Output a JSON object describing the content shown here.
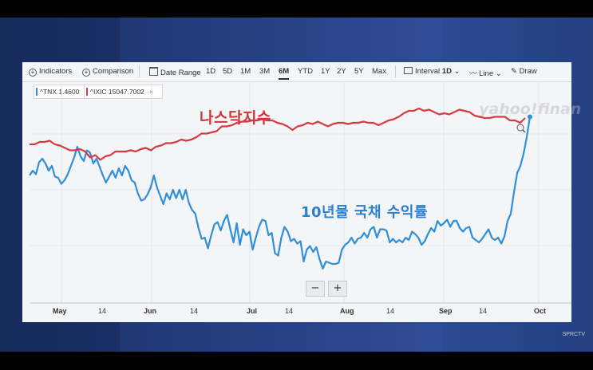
{
  "toolbar": {
    "indicators": "Indicators",
    "comparison": "Comparison",
    "date_range": "Date Range",
    "ranges": [
      "1D",
      "5D",
      "1M",
      "3M",
      "6M",
      "YTD",
      "1Y",
      "2Y",
      "5Y",
      "Max"
    ],
    "selected_range": "6M",
    "interval_label": "Interval",
    "interval_value": "1D",
    "line_label": "Line",
    "draw": "Draw"
  },
  "legend": {
    "tnx": "^TNX 1.4600",
    "ixic": "^IXIC 15047.7002",
    "close": "×"
  },
  "captions": {
    "nasdaq": "나스닥지수",
    "bond": "10년물 국채 수익률"
  },
  "watermark": "yahoo!finan",
  "zoom": {
    "minus": "−",
    "plus": "+"
  },
  "x_axis": [
    "May",
    "14",
    "Jun",
    "14",
    "Jul",
    "14",
    "Aug",
    "14",
    "Sep",
    "14",
    "Oct"
  ],
  "corner_logo": "SPRCTV",
  "colors": {
    "tnx": "#2f8fd8",
    "ixic": "#d63a42"
  },
  "chart_data": {
    "type": "line",
    "x_tick_labels": [
      "May",
      "14",
      "Jun",
      "14",
      "Jul",
      "14",
      "Aug",
      "14",
      "Sep",
      "14",
      "Oct"
    ],
    "series": [
      {
        "name": "^TNX",
        "values": [
          0.62,
          0.66,
          0.63,
          0.73,
          0.76,
          0.72,
          0.66,
          0.7,
          0.61,
          0.6,
          0.55,
          0.58,
          0.63,
          0.7,
          0.77,
          0.86,
          0.78,
          0.74,
          0.83,
          0.81,
          0.72,
          0.76,
          0.69,
          0.62,
          0.56,
          0.61,
          0.66,
          0.6,
          0.68,
          0.62,
          0.7,
          0.66,
          0.58,
          0.56,
          0.47,
          0.41,
          0.42,
          0.46,
          0.52,
          0.62,
          0.52,
          0.45,
          0.38,
          0.47,
          0.42,
          0.5,
          0.43,
          0.5,
          0.42,
          0.5,
          0.39,
          0.33,
          0.3,
          0.18,
          0.09,
          0.1,
          0.01,
          0.12,
          0.21,
          0.23,
          0.16,
          0.24,
          0.29,
          0.17,
          0.06,
          0.22,
          0.04,
          0.17,
          0.12,
          0.15,
          0.0,
          0.1,
          0.19,
          0.25,
          0.24,
          0.12,
          0.14,
          -0.03,
          -0.05,
          0.1,
          0.19,
          0.15,
          0.07,
          0.09,
          0.05,
          0.07,
          -0.1,
          0.0,
          0.03,
          -0.02,
          0.02,
          -0.08,
          -0.16,
          -0.1,
          -0.11,
          -0.12,
          -0.12,
          -0.11,
          0.0,
          0.04,
          0.06,
          0.1,
          0.05,
          0.09,
          0.1,
          0.14,
          0.1,
          0.17,
          0.19,
          0.1,
          0.17,
          0.17,
          0.16,
          0.06,
          0.09,
          0.06,
          0.08,
          0.06,
          0.1,
          0.08,
          0.15,
          0.13,
          0.1,
          0.04,
          0.07,
          0.13,
          0.18,
          0.15,
          0.24,
          0.2,
          0.22,
          0.25,
          0.19,
          0.24,
          0.24,
          0.18,
          0.15,
          0.18,
          0.19,
          0.1,
          0.08,
          0.06,
          0.09,
          0.13,
          0.17,
          0.1,
          0.08,
          0.1,
          0.05,
          0.11,
          0.24,
          0.3,
          0.48,
          0.64,
          0.7,
          0.8,
          0.94,
          1.11
        ]
      },
      {
        "name": "^IXIC",
        "values": [
          0.88,
          0.88,
          0.9,
          0.9,
          0.91,
          0.88,
          0.87,
          0.85,
          0.83,
          0.83,
          0.84,
          0.82,
          0.77,
          0.79,
          0.75,
          0.78,
          0.79,
          0.82,
          0.82,
          0.82,
          0.83,
          0.82,
          0.84,
          0.85,
          0.83,
          0.86,
          0.87,
          0.89,
          0.89,
          0.9,
          0.92,
          0.91,
          0.92,
          0.94,
          0.97,
          0.97,
          0.98,
          0.99,
          1.03,
          1.03,
          1.04,
          1.06,
          1.07,
          1.07,
          1.08,
          1.08,
          1.09,
          1.08,
          1.08,
          1.06,
          1.05,
          1.03,
          1.0,
          1.03,
          1.04,
          1.06,
          1.05,
          1.07,
          1.05,
          1.03,
          1.05,
          1.06,
          1.06,
          1.05,
          1.06,
          1.06,
          1.07,
          1.06,
          1.06,
          1.04,
          1.06,
          1.08,
          1.09,
          1.11,
          1.14,
          1.16,
          1.16,
          1.18,
          1.16,
          1.17,
          1.15,
          1.13,
          1.14,
          1.13,
          1.15,
          1.17,
          1.16,
          1.15,
          1.12,
          1.11,
          1.1,
          1.1,
          1.11,
          1.11,
          1.11,
          1.08,
          1.08,
          1.06,
          1.1
        ]
      }
    ]
  }
}
